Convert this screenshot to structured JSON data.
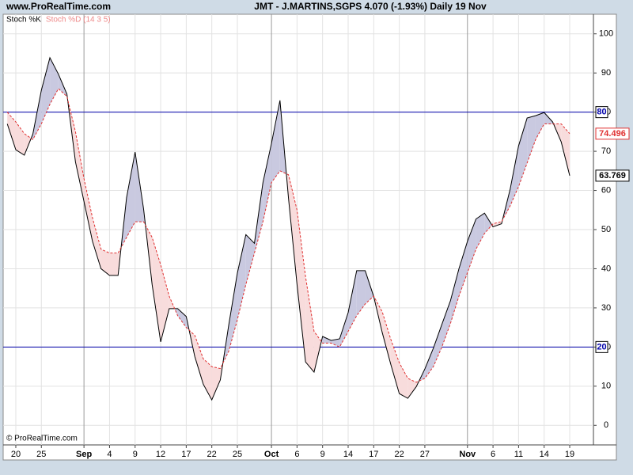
{
  "chart_data": {
    "type": "line",
    "source": "www.ProRealTime.com",
    "title": "JMT - J.MARTINS,SGPS    4.070 (-1.93%)    Daily  19 Nov",
    "footer": "© ProRealTime.com",
    "categories": [
      null,
      "20",
      null,
      null,
      "25",
      null,
      null,
      null,
      null,
      "Sep",
      null,
      null,
      "4",
      null,
      null,
      "9",
      null,
      null,
      "12",
      null,
      null,
      "17",
      null,
      null,
      "22",
      null,
      null,
      "25",
      null,
      null,
      null,
      "Oct",
      null,
      null,
      "6",
      null,
      null,
      "9",
      null,
      null,
      "14",
      null,
      null,
      "17",
      null,
      null,
      "22",
      null,
      null,
      "27",
      null,
      null,
      null,
      null,
      "Nov",
      null,
      null,
      "6",
      null,
      null,
      "11",
      null,
      null,
      "14",
      null,
      null,
      "19"
    ],
    "series": [
      {
        "name": "Stoch %K",
        "color": "#000000",
        "values": [
          77,
          70.4,
          69,
          74.4,
          85.6,
          93.9,
          89.7,
          84.6,
          67.3,
          57.2,
          47,
          40,
          38.3,
          38.3,
          58.2,
          69.8,
          55.2,
          35.9,
          21.3,
          29.8,
          29.8,
          27.8,
          17.6,
          10.5,
          6.5,
          11.6,
          25.8,
          38.9,
          48.7,
          46.5,
          62,
          72,
          83,
          58,
          36,
          16.2,
          13.6,
          22.7,
          21.7,
          22.1,
          28.8,
          39.5,
          39.5,
          32.9,
          23.7,
          15.6,
          8.1,
          6.9,
          9.9,
          14.4,
          19.7,
          25.8,
          31.8,
          40,
          47,
          52.7,
          54.2,
          50.7,
          51.5,
          60.2,
          71.4,
          78.5,
          79.1,
          79.9,
          77.5,
          72.4,
          63.769
        ]
      },
      {
        "name": "Stoch %D (14 3 5)",
        "color": "#e03030",
        "values": [
          80,
          77.5,
          74.5,
          73,
          77,
          82,
          86,
          84,
          75,
          63,
          53,
          45,
          44,
          44,
          48,
          52,
          52,
          48,
          41,
          33,
          28,
          25,
          23,
          17,
          15,
          14.5,
          19,
          27,
          36,
          44,
          52,
          62,
          65,
          64,
          55,
          38,
          24,
          21,
          21,
          20,
          24,
          28,
          31,
          33,
          29,
          22,
          16,
          12,
          11,
          12,
          15,
          20,
          26,
          33,
          39,
          45,
          49,
          51.5,
          52,
          56,
          61,
          67,
          73,
          77,
          77,
          77,
          74.496
        ]
      }
    ],
    "ylim": [
      -5,
      105
    ],
    "yticks": [
      0,
      10,
      20,
      30,
      40,
      50,
      60,
      70,
      80,
      90,
      100
    ],
    "grid": true,
    "hlines": [
      80,
      20
    ],
    "hline_color": "#0000aa",
    "fill_up_color": "#c9c9e0",
    "fill_down_color": "#f8dcdc"
  }
}
